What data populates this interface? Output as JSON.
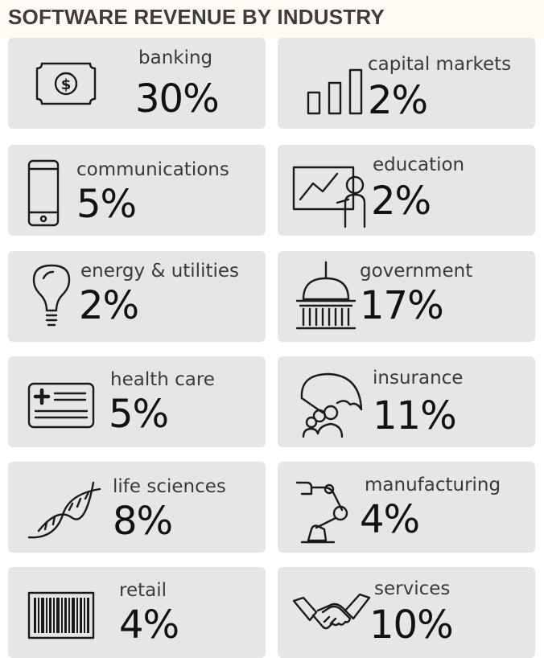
{
  "chart_data": {
    "type": "table",
    "title": "SOFTWARE REVENUE BY INDUSTRY",
    "categories": [
      "banking",
      "capital markets",
      "communications",
      "education",
      "energy & utilities",
      "government",
      "health care",
      "insurance",
      "life sciences",
      "manufacturing",
      "retail",
      "services"
    ],
    "values": [
      30,
      2,
      5,
      2,
      2,
      17,
      5,
      11,
      8,
      4,
      4,
      10
    ],
    "unit": "%"
  },
  "tiles": [
    {
      "label": "banking",
      "value": "30%",
      "icon": "banknote-icon"
    },
    {
      "label": "capital markets",
      "value": "2%",
      "icon": "bar-chart-icon"
    },
    {
      "label": "communications",
      "value": "5%",
      "icon": "smartphone-icon"
    },
    {
      "label": "education",
      "value": "2%",
      "icon": "presentation-board-icon"
    },
    {
      "label": "energy & utilities",
      "value": "2%",
      "icon": "lightbulb-icon"
    },
    {
      "label": "government",
      "value": "17%",
      "icon": "capitol-building-icon"
    },
    {
      "label": "health care",
      "value": "5%",
      "icon": "health-card-icon"
    },
    {
      "label": "insurance",
      "value": "11%",
      "icon": "umbrella-family-icon"
    },
    {
      "label": "life sciences",
      "value": "8%",
      "icon": "dna-helix-icon"
    },
    {
      "label": "manufacturing",
      "value": "4%",
      "icon": "robot-arm-icon"
    },
    {
      "label": "retail",
      "value": "4%",
      "icon": "barcode-icon"
    },
    {
      "label": "services",
      "value": "10%",
      "icon": "handshake-icon"
    }
  ]
}
